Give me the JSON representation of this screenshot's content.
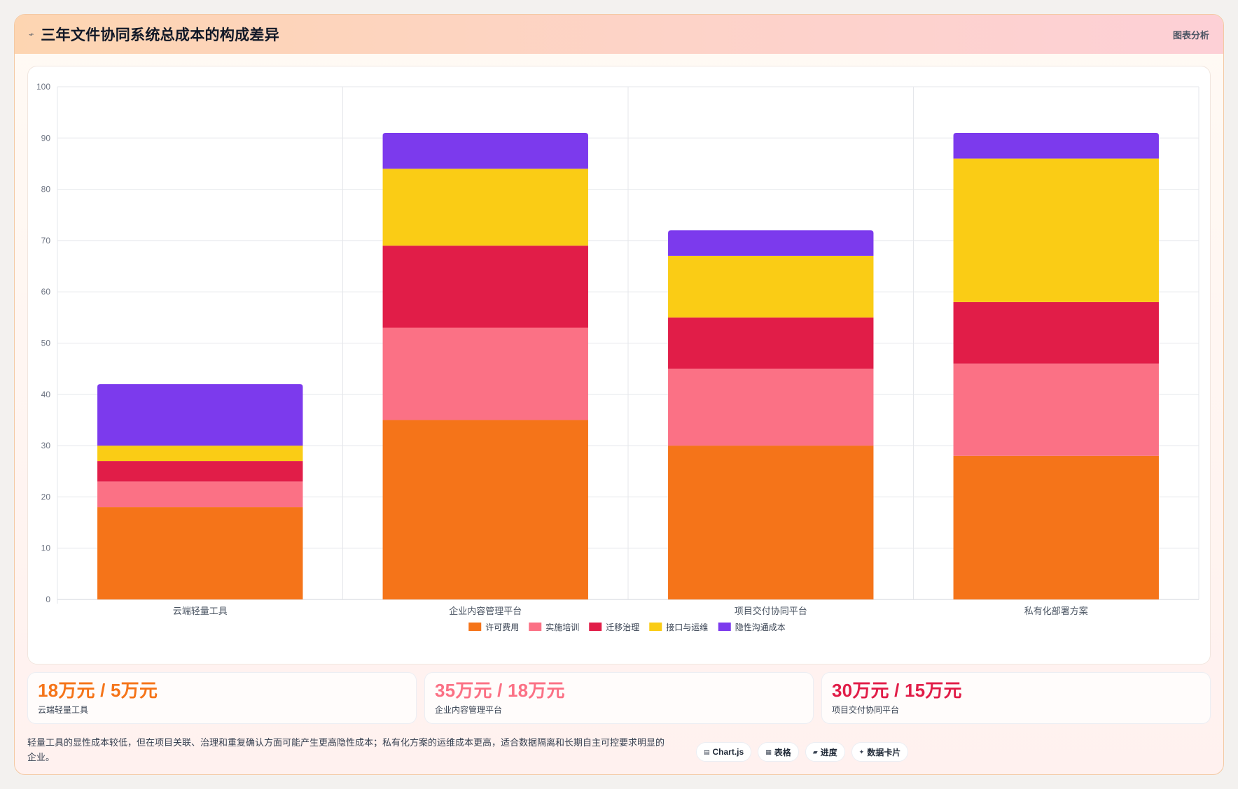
{
  "header": {
    "icon": "lightning-icon",
    "title": "三年文件协同系统总成本的构成差异",
    "right_label": "图表分析"
  },
  "chart_data": {
    "type": "bar",
    "stacked": true,
    "categories": [
      "云端轻量工具",
      "企业内容管理平台",
      "项目交付协同平台",
      "私有化部署方案"
    ],
    "series": [
      {
        "name": "许可费用",
        "color": "#f57419",
        "values": [
          18,
          35,
          30,
          28
        ]
      },
      {
        "name": "实施培训",
        "color": "#fb7185",
        "values": [
          5,
          18,
          15,
          18
        ]
      },
      {
        "name": "迁移治理",
        "color": "#e11d48",
        "values": [
          4,
          16,
          10,
          12
        ]
      },
      {
        "name": "接口与运维",
        "color": "#facc15",
        "values": [
          3,
          15,
          12,
          28
        ]
      },
      {
        "name": "隐性沟通成本",
        "color": "#7c3aed",
        "values": [
          12,
          7,
          5,
          5
        ]
      }
    ],
    "ylim": [
      0,
      100
    ],
    "yticks": [
      "0",
      "10",
      "20",
      "30",
      "40",
      "50",
      "60",
      "70",
      "80",
      "90",
      "100"
    ],
    "grid": true,
    "legend": "bottom"
  },
  "metrics": [
    {
      "value": "18万元 / 5万元",
      "label": "云端轻量工具",
      "color": "#f57419"
    },
    {
      "value": "35万元 / 18万元",
      "label": "企业内容管理平台",
      "color": "#fb7185"
    },
    {
      "value": "30万元 / 15万元",
      "label": "项目交付协同平台",
      "color": "#e11d48"
    }
  ],
  "footer": {
    "note": "轻量工具的显性成本较低，但在项目关联、治理和重复确认方面可能产生更高隐性成本；私有化方案的运维成本更高，适合数据隔离和长期自主可控要求明显的企业。",
    "tags": [
      {
        "icon": "chart-icon",
        "label": "Chart.js"
      },
      {
        "icon": "table-icon",
        "label": "表格"
      },
      {
        "icon": "progress-icon",
        "label": "进度"
      },
      {
        "icon": "sparkle-icon",
        "label": "数据卡片"
      }
    ]
  }
}
